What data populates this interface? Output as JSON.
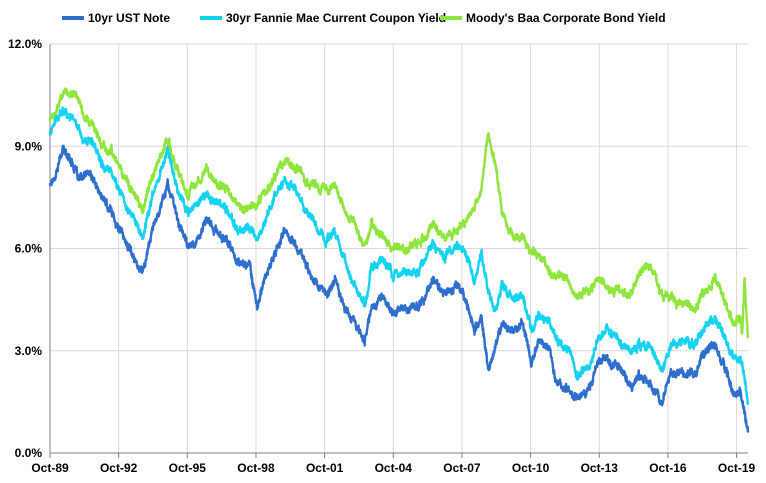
{
  "chart_data": {
    "type": "line",
    "title": "",
    "xlabel": "",
    "ylabel": "",
    "ylim": [
      0,
      12
    ],
    "y_ticks": [
      "0.0%",
      "3.0%",
      "6.0%",
      "9.0%",
      "12.0%"
    ],
    "y_tick_values": [
      0,
      3,
      6,
      9,
      12
    ],
    "x_range": [
      1989.75,
      2020.25
    ],
    "x_ticks": [
      "Oct-89",
      "Oct-92",
      "Oct-95",
      "Oct-98",
      "Oct-01",
      "Oct-04",
      "Oct-07",
      "Oct-10",
      "Oct-13",
      "Oct-16",
      "Oct-19"
    ],
    "x_tick_values": [
      1989.75,
      1992.75,
      1995.75,
      1998.75,
      2001.75,
      2004.75,
      2007.75,
      2010.75,
      2013.75,
      2016.75,
      2019.75
    ],
    "legend_position": "top",
    "series": [
      {
        "name": "10yr UST Note",
        "color": "#2e6fce",
        "x": [
          1989.75,
          1990.0,
          1990.3,
          1990.7,
          1991.0,
          1991.5,
          1992.0,
          1992.5,
          1992.9,
          1993.3,
          1993.8,
          1994.2,
          1994.9,
          1995.3,
          1995.8,
          1996.2,
          1996.6,
          1997.0,
          1997.5,
          1998.0,
          1998.5,
          1998.8,
          1999.2,
          1999.6,
          2000.0,
          2000.4,
          2000.9,
          2001.3,
          2001.8,
          2002.2,
          2002.7,
          2003.0,
          2003.5,
          2003.8,
          2004.3,
          2004.7,
          2005.2,
          2005.6,
          2006.1,
          2006.5,
          2007.0,
          2007.5,
          2007.9,
          2008.3,
          2008.6,
          2008.9,
          2009.2,
          2009.5,
          2010.0,
          2010.4,
          2010.8,
          2011.1,
          2011.6,
          2011.9,
          2012.4,
          2012.8,
          2013.3,
          2013.7,
          2014.1,
          2014.6,
          2015.1,
          2015.5,
          2016.0,
          2016.5,
          2016.9,
          2017.4,
          2017.9,
          2018.3,
          2018.8,
          2019.2,
          2019.6,
          2019.9,
          2020.0,
          2020.25
        ],
        "values": [
          7.9,
          8.2,
          8.9,
          8.6,
          8.0,
          8.2,
          7.5,
          7.0,
          6.4,
          5.9,
          5.3,
          6.5,
          7.9,
          6.9,
          6.0,
          6.3,
          6.8,
          6.5,
          6.2,
          5.6,
          5.5,
          4.3,
          5.2,
          5.9,
          6.5,
          6.2,
          5.6,
          5.1,
          4.6,
          5.1,
          4.2,
          3.9,
          3.3,
          4.3,
          4.6,
          4.1,
          4.3,
          4.2,
          4.5,
          5.1,
          4.7,
          5.0,
          4.5,
          3.6,
          4.0,
          2.3,
          3.1,
          3.8,
          3.6,
          3.9,
          2.6,
          3.4,
          3.0,
          2.0,
          1.9,
          1.6,
          1.9,
          2.7,
          2.8,
          2.5,
          2.0,
          2.3,
          2.0,
          1.5,
          2.3,
          2.3,
          2.3,
          2.9,
          3.1,
          2.6,
          1.7,
          1.9,
          1.6,
          0.6
        ]
      },
      {
        "name": "30yr Fannie Mae Current Coupon Yield",
        "color": "#14d2f0",
        "x": [
          1989.75,
          1990.0,
          1990.4,
          1990.8,
          1991.2,
          1991.6,
          1992.0,
          1992.5,
          1992.9,
          1993.3,
          1993.8,
          1994.2,
          1994.9,
          1995.3,
          1995.8,
          1996.2,
          1996.6,
          1997.0,
          1997.5,
          1998.0,
          1998.5,
          1998.8,
          1999.2,
          1999.6,
          2000.0,
          2000.4,
          2000.9,
          2001.3,
          2001.8,
          2002.2,
          2002.7,
          2003.0,
          2003.5,
          2003.8,
          2004.3,
          2004.7,
          2005.2,
          2005.6,
          2006.1,
          2006.5,
          2007.0,
          2007.5,
          2007.9,
          2008.3,
          2008.6,
          2008.9,
          2009.2,
          2009.5,
          2010.0,
          2010.4,
          2010.8,
          2011.1,
          2011.6,
          2011.9,
          2012.4,
          2012.8,
          2013.3,
          2013.7,
          2014.1,
          2014.6,
          2015.1,
          2015.5,
          2016.0,
          2016.5,
          2016.9,
          2017.4,
          2017.9,
          2018.3,
          2018.8,
          2019.2,
          2019.6,
          2019.9,
          2020.0,
          2020.25
        ],
        "values": [
          9.4,
          9.7,
          10.1,
          9.8,
          9.2,
          9.1,
          8.6,
          8.2,
          7.5,
          7.0,
          6.3,
          7.5,
          8.9,
          7.8,
          7.0,
          7.3,
          7.6,
          7.4,
          7.1,
          6.5,
          6.6,
          6.2,
          6.9,
          7.6,
          8.0,
          7.8,
          7.1,
          6.7,
          6.2,
          6.6,
          5.5,
          5.0,
          4.3,
          5.4,
          5.7,
          5.2,
          5.3,
          5.2,
          5.6,
          6.2,
          5.8,
          6.1,
          5.8,
          5.1,
          5.8,
          4.8,
          4.1,
          4.9,
          4.5,
          4.6,
          3.6,
          4.1,
          3.8,
          3.3,
          3.0,
          2.2,
          2.5,
          3.4,
          3.6,
          3.3,
          2.9,
          3.1,
          3.1,
          2.5,
          3.1,
          3.2,
          3.2,
          3.6,
          4.0,
          3.4,
          2.7,
          2.8,
          2.6,
          1.5
        ]
      },
      {
        "name": "Moody's Baa Corporate Bond Yield",
        "color": "#8ee63c",
        "x": [
          1989.75,
          1990.0,
          1990.4,
          1990.8,
          1991.2,
          1991.6,
          1992.0,
          1992.5,
          1992.9,
          1993.3,
          1993.8,
          1994.2,
          1994.9,
          1995.3,
          1995.8,
          1996.2,
          1996.6,
          1997.0,
          1997.5,
          1998.0,
          1998.5,
          1998.8,
          1999.2,
          1999.6,
          2000.0,
          2000.4,
          2000.9,
          2001.3,
          2001.8,
          2002.2,
          2002.7,
          2003.0,
          2003.5,
          2003.8,
          2004.3,
          2004.7,
          2005.2,
          2005.6,
          2006.1,
          2006.5,
          2007.0,
          2007.5,
          2007.9,
          2008.3,
          2008.6,
          2008.9,
          2009.2,
          2009.5,
          2010.0,
          2010.4,
          2010.8,
          2011.1,
          2011.6,
          2011.9,
          2012.4,
          2012.8,
          2013.3,
          2013.7,
          2014.1,
          2014.6,
          2015.1,
          2015.5,
          2016.0,
          2016.5,
          2016.9,
          2017.4,
          2017.9,
          2018.3,
          2018.8,
          2019.2,
          2019.6,
          2019.9,
          2020.0,
          2020.1,
          2020.25
        ],
        "values": [
          9.8,
          10.0,
          10.6,
          10.5,
          10.0,
          9.6,
          9.1,
          8.8,
          8.3,
          7.7,
          7.1,
          8.1,
          9.2,
          8.3,
          7.6,
          8.1,
          8.3,
          8.0,
          7.7,
          7.2,
          7.2,
          7.3,
          7.7,
          8.1,
          8.6,
          8.5,
          8.0,
          7.9,
          7.7,
          7.9,
          7.0,
          6.8,
          6.0,
          6.7,
          6.3,
          6.1,
          5.9,
          6.1,
          6.3,
          6.7,
          6.3,
          6.5,
          6.8,
          7.2,
          7.7,
          9.4,
          8.5,
          7.0,
          6.3,
          6.4,
          5.8,
          5.9,
          5.3,
          5.2,
          5.1,
          4.6,
          4.8,
          5.1,
          4.9,
          4.7,
          4.7,
          5.3,
          5.5,
          4.6,
          4.5,
          4.4,
          4.2,
          4.6,
          5.1,
          4.5,
          3.9,
          3.9,
          3.5,
          5.1,
          3.4
        ]
      }
    ]
  }
}
